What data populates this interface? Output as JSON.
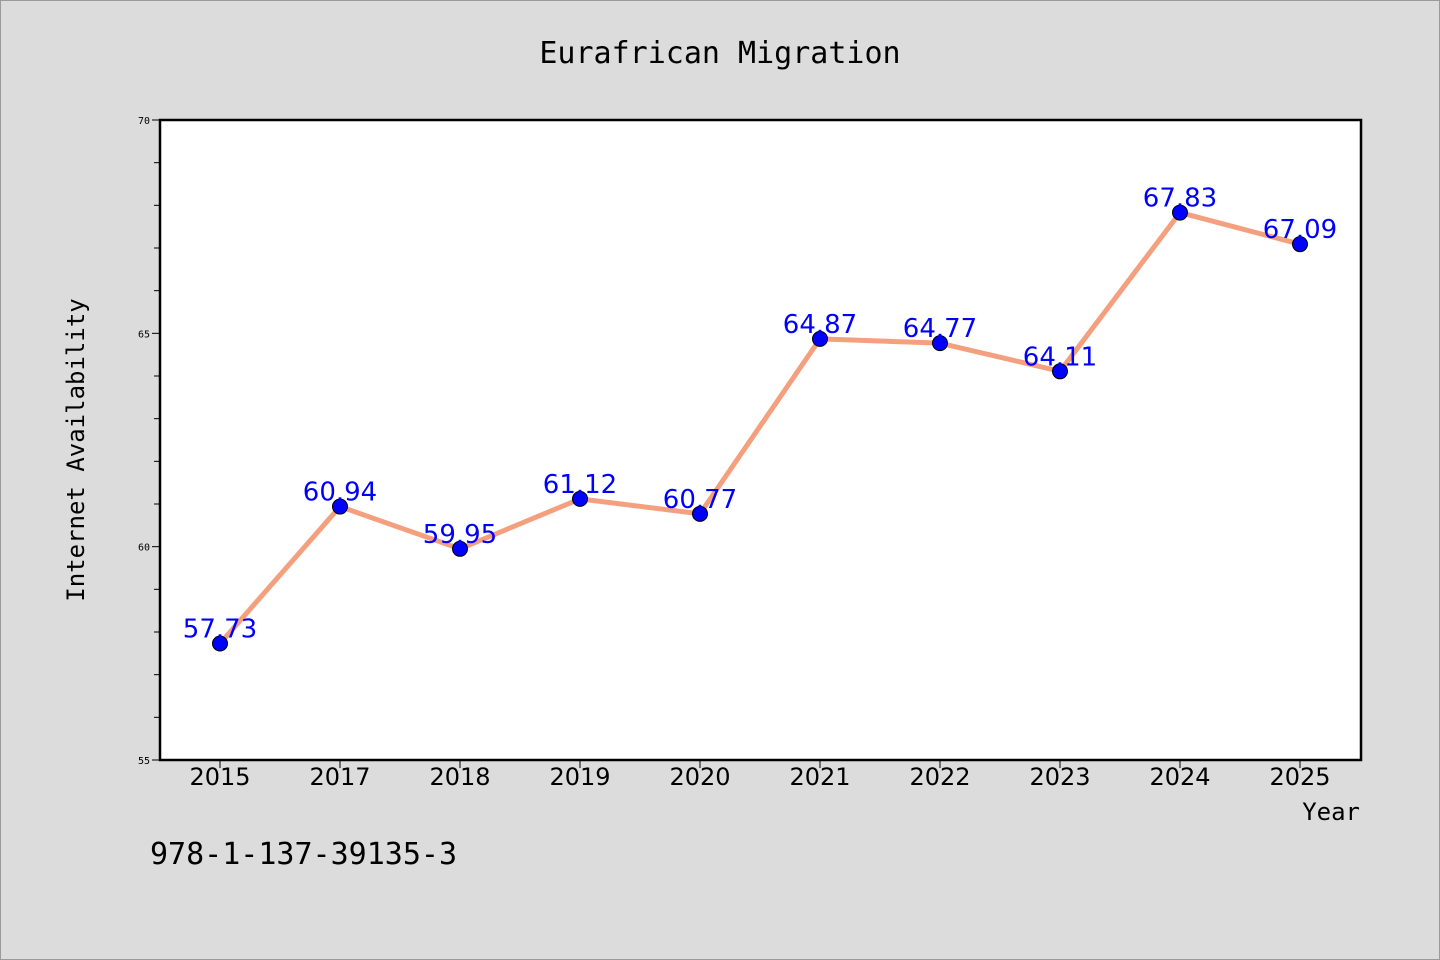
{
  "chart_data": {
    "type": "line",
    "title": "Eurafrican Migration",
    "xlabel": "Year",
    "ylabel": "Internet Availability",
    "categories": [
      "2015",
      "2017",
      "2018",
      "2019",
      "2020",
      "2021",
      "2022",
      "2023",
      "2024",
      "2025"
    ],
    "series": [
      {
        "values": [
          57.73,
          60.94,
          59.95,
          61.12,
          60.77,
          64.87,
          64.77,
          64.11,
          67.83,
          67.09
        ],
        "line_color": "#f4a07e",
        "marker_color": "#0000ff"
      }
    ],
    "data_labels": [
      "57.73",
      "60.94",
      "59.95",
      "61.12",
      "60.77",
      "64.87",
      "64.77",
      "64.11",
      "67.83",
      "67.09"
    ],
    "data_label_color": "#0000ff",
    "ylim": [
      55,
      70
    ],
    "yticks": [
      "55",
      "60",
      "65",
      "70"
    ],
    "grid": false,
    "legend": "none"
  },
  "footnote": "978-1-137-39135-3"
}
